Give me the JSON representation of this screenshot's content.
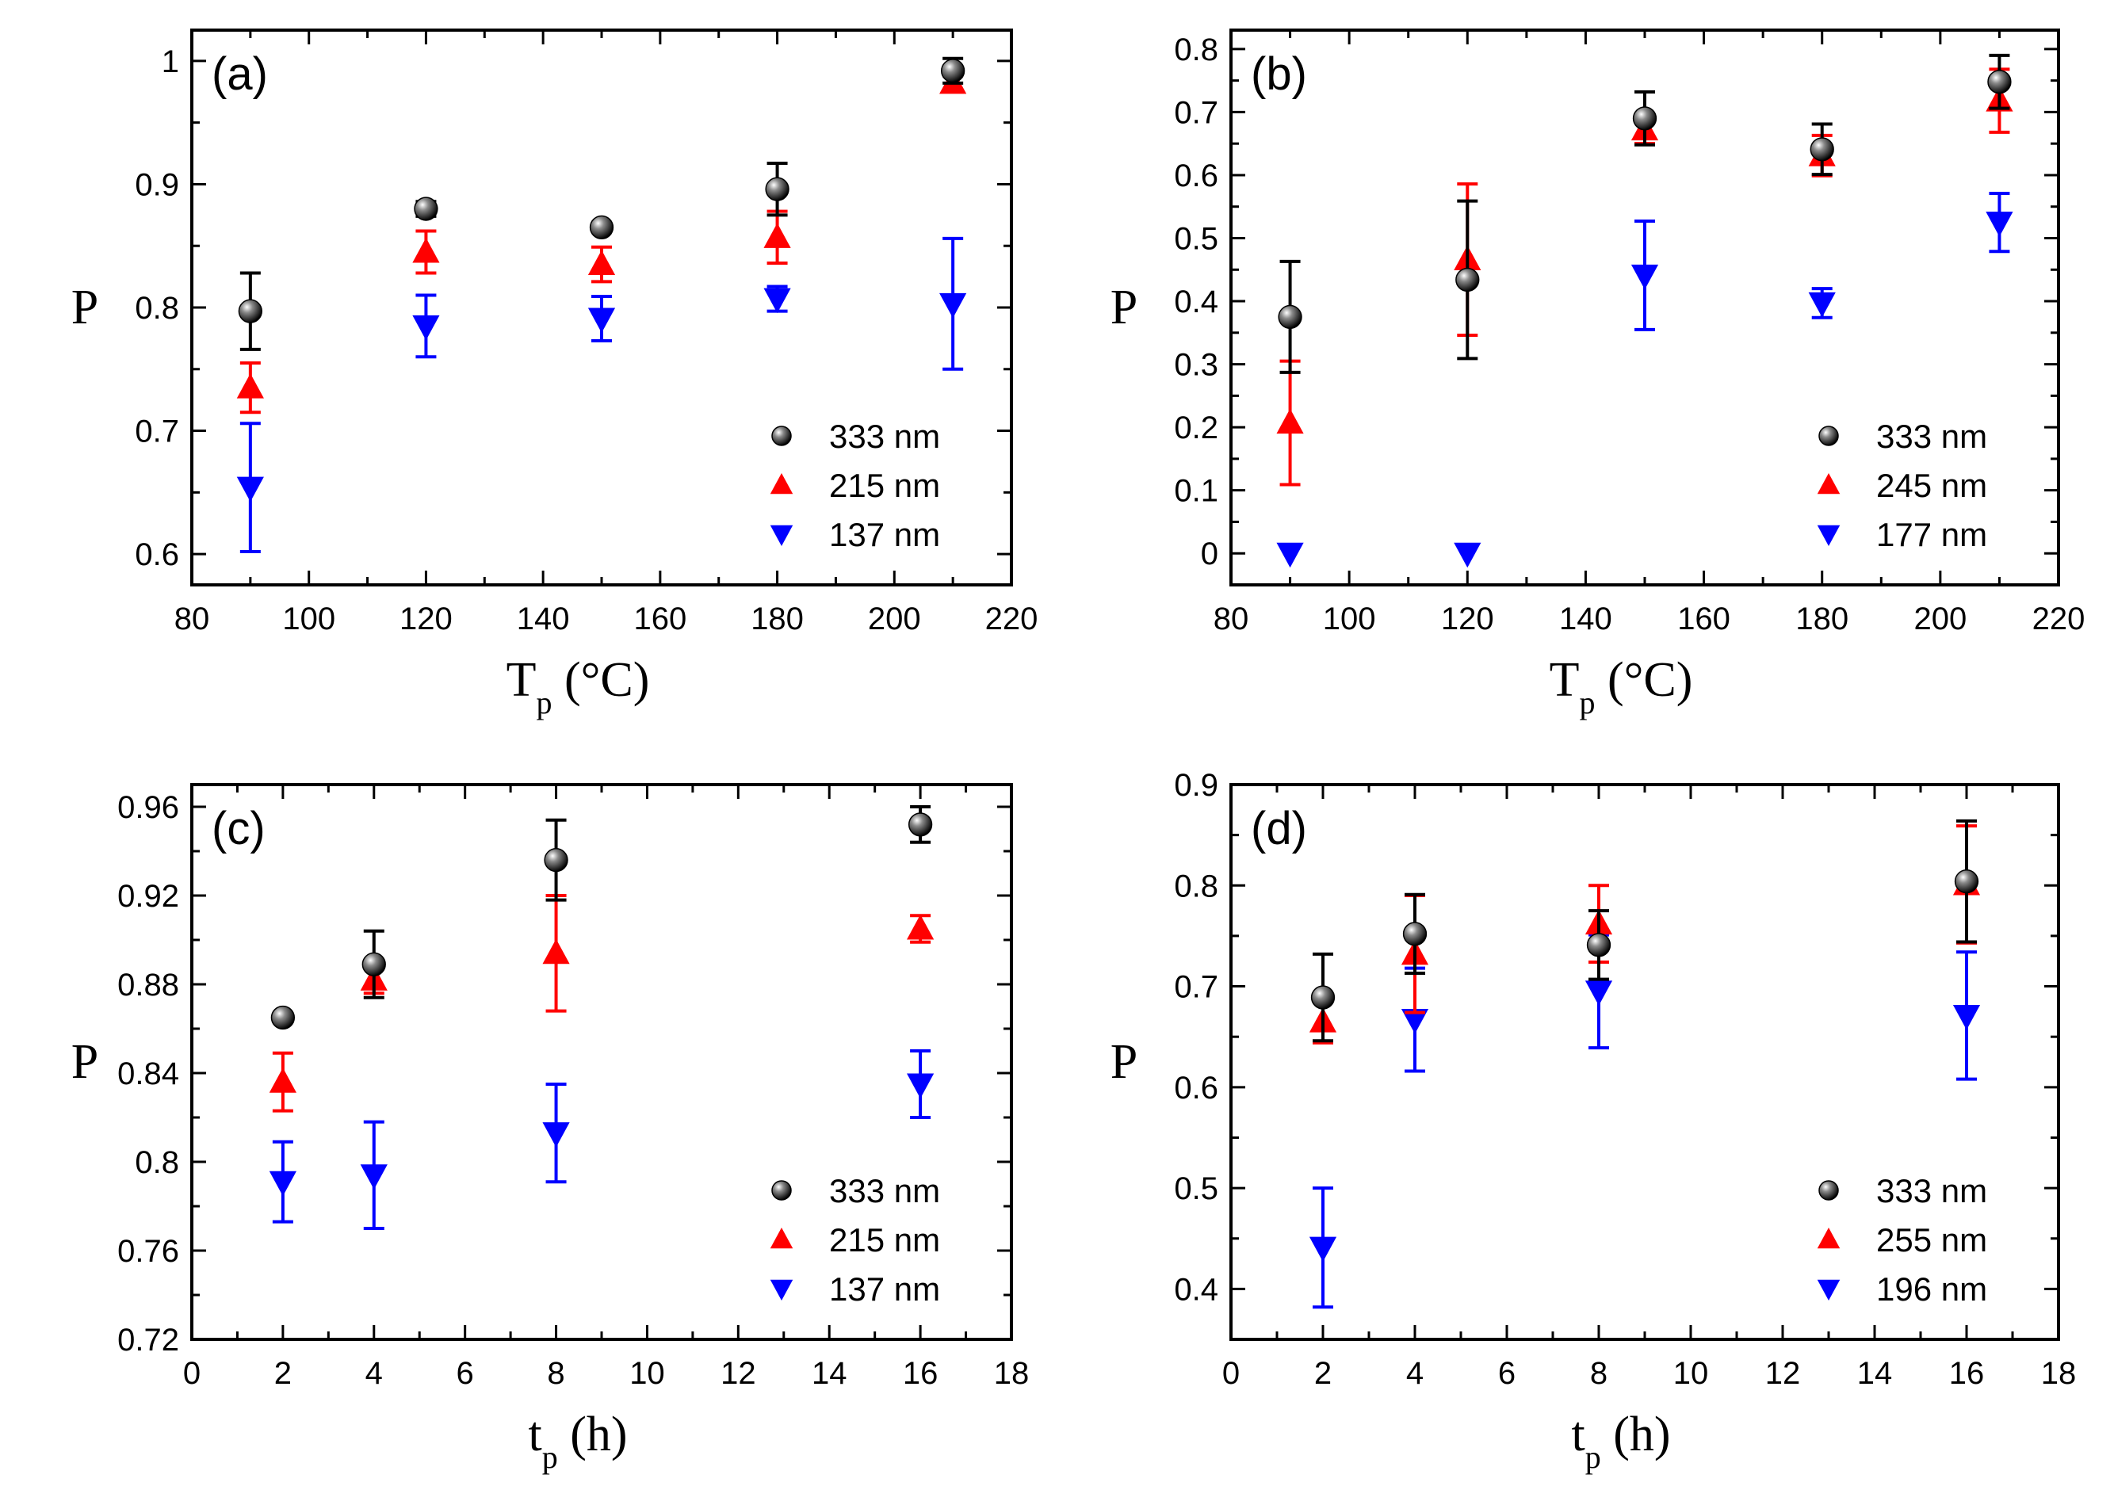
{
  "chart_data": [
    {
      "type": "scatter",
      "panel_label": "(a)",
      "ylabel": "P",
      "xlabel_main": "T",
      "xlabel_sub": "p",
      "xlabel_unit": " (°C)",
      "xlim": [
        80,
        220
      ],
      "ylim": [
        0.575,
        1.025
      ],
      "xticks": [
        80,
        100,
        120,
        140,
        160,
        180,
        200,
        220
      ],
      "yticks": [
        0.6,
        0.7,
        0.8,
        0.9,
        1.0
      ],
      "ytick_labels": [
        "0.6",
        "0.7",
        "0.8",
        "0.9",
        "1"
      ],
      "legend_position": "bottom-right",
      "series": [
        {
          "name": "333 nm",
          "marker": "sphere",
          "color": "#000000",
          "x": [
            90,
            120,
            150,
            180,
            210
          ],
          "y": [
            0.797,
            0.88,
            0.865,
            0.896,
            0.992
          ],
          "err": [
            0.031,
            0.006,
            0.003,
            0.021,
            0.01
          ]
        },
        {
          "name": "215 nm",
          "marker": "triangle-up",
          "color": "#ff0000",
          "x": [
            90,
            120,
            150,
            180,
            210
          ],
          "y": [
            0.735,
            0.845,
            0.835,
            0.857,
            0.982
          ],
          "err": [
            0.02,
            0.017,
            0.014,
            0.021,
            0.006
          ]
        },
        {
          "name": "137 nm",
          "marker": "triangle-down",
          "color": "#0000ff",
          "x": [
            90,
            120,
            150,
            180,
            210
          ],
          "y": [
            0.654,
            0.785,
            0.791,
            0.807,
            0.803
          ],
          "err": [
            0.052,
            0.025,
            0.018,
            0.01,
            0.053
          ]
        }
      ]
    },
    {
      "type": "scatter",
      "panel_label": "(b)",
      "ylabel": "P",
      "xlabel_main": "T",
      "xlabel_sub": "p",
      "xlabel_unit": " (°C)",
      "xlim": [
        80,
        220
      ],
      "ylim": [
        -0.05,
        0.83
      ],
      "xticks": [
        80,
        100,
        120,
        140,
        160,
        180,
        200,
        220
      ],
      "yticks": [
        0,
        0.1,
        0.2,
        0.3,
        0.4,
        0.5,
        0.6,
        0.7,
        0.8
      ],
      "ytick_labels": [
        "0",
        "0.1",
        "0.2",
        "0.3",
        "0.4",
        "0.5",
        "0.6",
        "0.7",
        "0.8"
      ],
      "legend_position": "bottom-right",
      "series": [
        {
          "name": "333 nm",
          "marker": "sphere",
          "color": "#000000",
          "x": [
            90,
            120,
            150,
            180,
            210
          ],
          "y": [
            0.375,
            0.434,
            0.69,
            0.641,
            0.748
          ],
          "err": [
            0.088,
            0.125,
            0.042,
            0.04,
            0.042
          ]
        },
        {
          "name": "245 nm",
          "marker": "triangle-up",
          "color": "#ff0000",
          "x": [
            90,
            120,
            150,
            180,
            210
          ],
          "y": [
            0.207,
            0.466,
            0.672,
            0.631,
            0.718
          ],
          "err": [
            0.098,
            0.12,
            0.022,
            0.032,
            0.05
          ]
        },
        {
          "name": "177 nm",
          "marker": "triangle-down",
          "color": "#0000ff",
          "x": [
            90,
            120,
            150,
            180,
            210
          ],
          "y": [
            0.0,
            0.0,
            0.441,
            0.397,
            0.525
          ],
          "err": [
            0,
            0,
            0.086,
            0.023,
            0.046
          ]
        }
      ]
    },
    {
      "type": "scatter",
      "panel_label": "(c)",
      "ylabel": "P",
      "xlabel_main": "t",
      "xlabel_sub": "p",
      "xlabel_unit": " (h)",
      "xlim": [
        0,
        18
      ],
      "ylim": [
        0.72,
        0.97
      ],
      "xticks": [
        0,
        2,
        4,
        6,
        8,
        10,
        12,
        14,
        16,
        18
      ],
      "yticks": [
        0.72,
        0.76,
        0.8,
        0.84,
        0.88,
        0.92,
        0.96
      ],
      "ytick_labels": [
        "0.72",
        "0.76",
        "0.8",
        "0.84",
        "0.88",
        "0.92",
        "0.96"
      ],
      "legend_position": "bottom-right",
      "series": [
        {
          "name": "333 nm",
          "marker": "sphere",
          "color": "#000000",
          "x": [
            2,
            4,
            8,
            16
          ],
          "y": [
            0.865,
            0.889,
            0.936,
            0.952
          ],
          "err": [
            0.002,
            0.015,
            0.018,
            0.008
          ]
        },
        {
          "name": "215 nm",
          "marker": "triangle-up",
          "color": "#ff0000",
          "x": [
            2,
            4,
            8,
            16
          ],
          "y": [
            0.836,
            0.882,
            0.894,
            0.905
          ],
          "err": [
            0.013,
            0.006,
            0.026,
            0.006
          ]
        },
        {
          "name": "137 nm",
          "marker": "triangle-down",
          "color": "#0000ff",
          "x": [
            2,
            4,
            8,
            16
          ],
          "y": [
            0.791,
            0.794,
            0.813,
            0.835
          ],
          "err": [
            0.018,
            0.024,
            0.022,
            0.015
          ]
        }
      ]
    },
    {
      "type": "scatter",
      "panel_label": "(d)",
      "ylabel": "P",
      "xlabel_main": "t",
      "xlabel_sub": "p",
      "xlabel_unit": " (h)",
      "xlim": [
        0,
        18
      ],
      "ylim": [
        0.35,
        0.9
      ],
      "xticks": [
        0,
        2,
        4,
        6,
        8,
        10,
        12,
        14,
        16,
        18
      ],
      "yticks": [
        0.4,
        0.5,
        0.6,
        0.7,
        0.8,
        0.9
      ],
      "ytick_labels": [
        "0.4",
        "0.5",
        "0.6",
        "0.7",
        "0.8",
        "0.9"
      ],
      "legend_position": "bottom-right",
      "series": [
        {
          "name": "333 nm",
          "marker": "sphere",
          "color": "#000000",
          "x": [
            2,
            4,
            8,
            16
          ],
          "y": [
            0.689,
            0.752,
            0.741,
            0.804
          ],
          "err": [
            0.043,
            0.039,
            0.034,
            0.06
          ]
        },
        {
          "name": "255 nm",
          "marker": "triangle-up",
          "color": "#ff0000",
          "x": [
            2,
            4,
            8,
            16
          ],
          "y": [
            0.665,
            0.732,
            0.762,
            0.801
          ],
          "err": [
            0.021,
            0.058,
            0.038,
            0.058
          ]
        },
        {
          "name": "196 nm",
          "marker": "triangle-down",
          "color": "#0000ff",
          "x": [
            2,
            4,
            8,
            16
          ],
          "y": [
            0.441,
            0.667,
            0.695,
            0.671
          ],
          "err": [
            0.059,
            0.051,
            0.056,
            0.063
          ]
        }
      ]
    }
  ]
}
